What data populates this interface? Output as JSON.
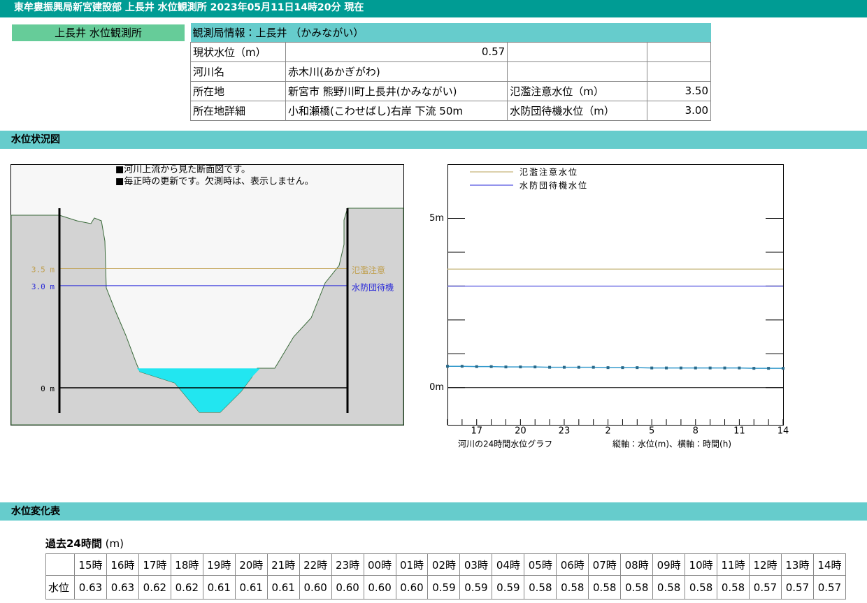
{
  "header": {
    "title": "東牟婁振興局新宮建設部 上長井 水位観測所 2023年05月11日14時20分 現在"
  },
  "station_label": "上長井 水位観測所",
  "info": {
    "title": "観測局情報：上長井 （かみながい）",
    "rows": [
      {
        "label": "現状水位（m）",
        "value": "0.57"
      },
      {
        "label": "河川名",
        "value": "赤木川(あかぎがわ)"
      },
      {
        "label": "所在地",
        "value": "新宮市 熊野川町上長井(かみながい)",
        "label2": "氾濫注意水位（m）",
        "value2": "3.50"
      },
      {
        "label": "所在地詳細",
        "value": "小和瀬橋(こわせばし)右岸 下流 50m",
        "label2": "水防団待機水位（m）",
        "value2": "3.00"
      }
    ]
  },
  "sections": [
    "水位状況図",
    "水位変化表"
  ],
  "cross_section": {
    "notes": [
      "■河川上流から見た断面図です。",
      "■毎正時の更新です。欠測時は、表示しません。"
    ],
    "water_level": 0.57,
    "levels": [
      {
        "value": 3.5,
        "label": "3.5 m",
        "name": "氾濫注意",
        "color": "#c0a050"
      },
      {
        "value": 3.0,
        "label": "3.0 m",
        "name": "水防団待機",
        "color": "#2a2ad8"
      },
      {
        "value": 0,
        "label": "0 m",
        "color": "#000000"
      }
    ]
  },
  "chart_data": {
    "type": "line",
    "categories": [
      null,
      null,
      "17",
      null,
      null,
      "20",
      null,
      null,
      "23",
      null,
      null,
      "2",
      null,
      null,
      "5",
      null,
      null,
      "8",
      null,
      null,
      "11",
      null,
      null,
      "14"
    ],
    "series": [
      {
        "color": "#3399cc",
        "values": [
          0.63,
          0.63,
          0.62,
          0.62,
          0.61,
          0.61,
          0.61,
          0.6,
          0.6,
          0.6,
          0.6,
          0.59,
          0.59,
          0.59,
          0.58,
          0.58,
          0.58,
          0.58,
          0.58,
          0.58,
          0.58,
          0.57,
          0.57,
          0.57
        ]
      }
    ],
    "thresholds": [
      {
        "name": "氾濫注意水位",
        "value": 3.5,
        "color": "#b8a35a"
      },
      {
        "name": "水防団待機水位",
        "value": 3.0,
        "color": "#2a2ad8"
      }
    ],
    "ylim": [
      -1.1,
      6.6
    ],
    "yticks": [
      {
        "value": 0,
        "label": "0m"
      },
      {
        "value": 5,
        "label": "5m"
      }
    ],
    "minor_yticks": [
      1,
      2,
      3,
      4
    ],
    "caption": "河川の24時間水位グラフ",
    "axis_note": "縦軸：水位(m)、横軸：時間(h)"
  },
  "table": {
    "caption": "過去24時間",
    "unit": "(m)",
    "row_label": "水位",
    "hours": [
      "15時",
      "16時",
      "17時",
      "18時",
      "19時",
      "20時",
      "21時",
      "22時",
      "23時",
      "00時",
      "01時",
      "02時",
      "03時",
      "04時",
      "05時",
      "06時",
      "07時",
      "08時",
      "09時",
      "10時",
      "11時",
      "12時",
      "13時",
      "14時"
    ],
    "values": [
      "0.63",
      "0.63",
      "0.62",
      "0.62",
      "0.61",
      "0.61",
      "0.61",
      "0.60",
      "0.60",
      "0.60",
      "0.60",
      "0.59",
      "0.59",
      "0.59",
      "0.58",
      "0.58",
      "0.58",
      "0.58",
      "0.58",
      "0.58",
      "0.58",
      "0.57",
      "0.57",
      "0.57"
    ]
  }
}
